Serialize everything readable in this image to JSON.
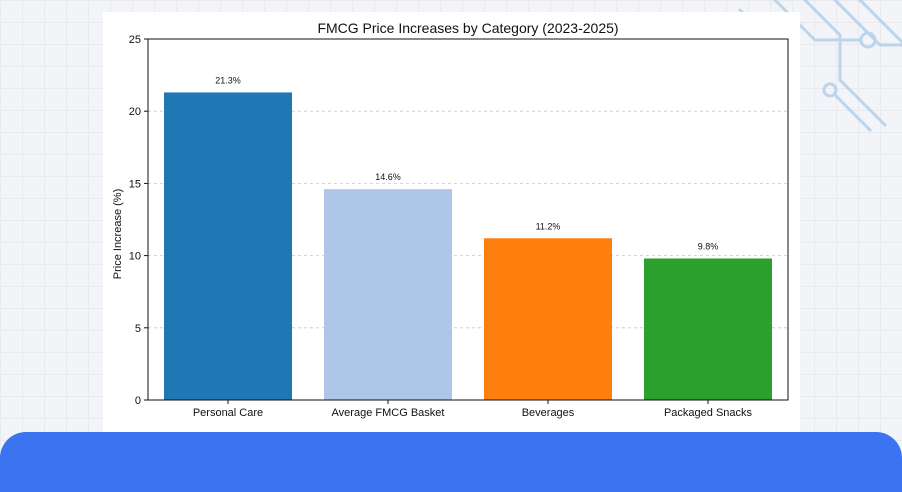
{
  "chart_data": {
    "type": "bar",
    "title": "FMCG Price Increases by Category (2023-2025)",
    "xlabel": "",
    "ylabel": "Price Increase (%)",
    "categories": [
      "Personal Care",
      "Average FMCG Basket",
      "Beverages",
      "Packaged Snacks"
    ],
    "values": [
      21.3,
      14.6,
      11.2,
      9.8
    ],
    "data_labels": [
      "21.3%",
      "14.6%",
      "11.2%",
      "9.8%"
    ],
    "colors": [
      "#1f77b4",
      "#aec7e8",
      "#ff7f0e",
      "#2ca02c"
    ],
    "ylim": [
      0,
      25
    ],
    "yticks": [
      0,
      5,
      10,
      15,
      20,
      25
    ],
    "grid": "y-dashed",
    "legend": "none"
  },
  "decoration": {
    "banner_color": "#3b73f1",
    "circuit_color": "#9cc3e8"
  }
}
